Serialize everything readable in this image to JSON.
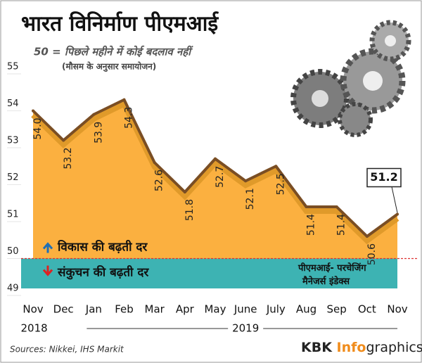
{
  "chart_data": {
    "type": "area",
    "title": "भारत विनिर्माण पीएमआई",
    "subtitle": "50 = पिछले महीने में कोई बदलाव नहीं",
    "subtitle2": "(मौसम के अनुसार समायोजन)",
    "categories": [
      "Nov",
      "Dec",
      "Jan",
      "Feb",
      "Mar",
      "Apr",
      "May",
      "June",
      "July",
      "Aug",
      "Sep",
      "Oct",
      "Nov"
    ],
    "years": [
      "2018",
      "2019"
    ],
    "values": [
      54.0,
      53.2,
      53.9,
      54.3,
      52.6,
      51.8,
      52.7,
      52.1,
      52.5,
      51.4,
      51.4,
      50.6,
      51.2
    ],
    "value_labels": [
      "54.0",
      "53.2",
      "53.9",
      "54.3",
      "52.6",
      "51.8",
      "52.7",
      "52.1",
      "52.5",
      "51.4",
      "51.4",
      "50.6",
      "51.2"
    ],
    "color": "#fbb040",
    "ylim": [
      49,
      55
    ],
    "yticks": [
      49,
      50,
      51,
      52,
      53,
      54,
      55
    ],
    "annotations": [
      "विकास की बढ़ती दर",
      "संकुचन की बढ़ती दर",
      "पीएमआई- परचेजिंग",
      "मैनेजर्स इंडेक्स"
    ],
    "source": "Sources: Nikkei, IHS Markit",
    "brand": [
      "KBK ",
      "Info",
      "graphics"
    ]
  }
}
